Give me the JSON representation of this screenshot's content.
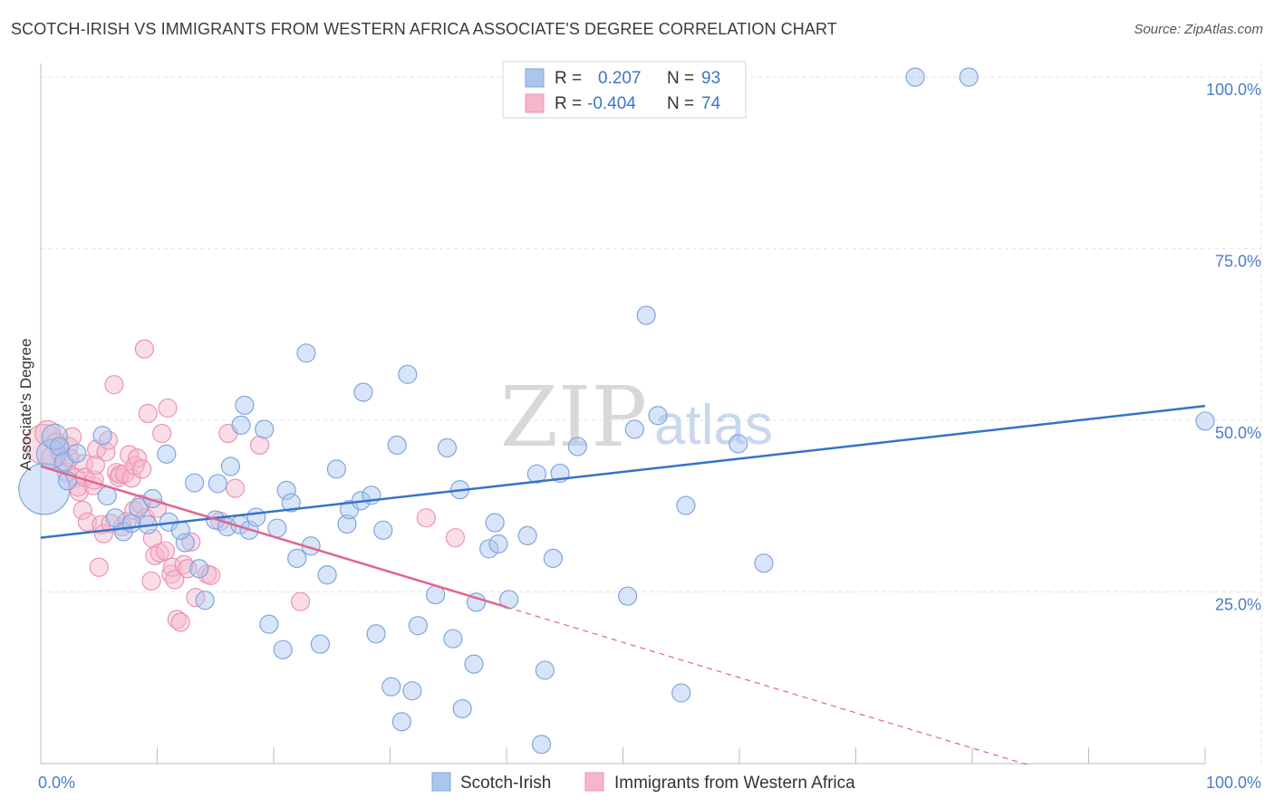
{
  "header": {
    "title": "SCOTCH-IRISH VS IMMIGRANTS FROM WESTERN AFRICA ASSOCIATE'S DEGREE CORRELATION CHART",
    "source": "Source: ZipAtlas.com"
  },
  "watermark": {
    "zip": "ZIP",
    "atlas": "atlas"
  },
  "colors": {
    "blue_fill": "#a9c6ef",
    "blue_stroke": "#7fa6de",
    "blue_line": "#3672cc",
    "pink_fill": "#f5b6ca",
    "pink_stroke": "#ec93b0",
    "pink_line": "#e0658f",
    "grid": "#e3e3e3",
    "tick_text": "#4a7cc9"
  },
  "legend": {
    "rows": [
      {
        "r_label": "R =",
        "r_value": "0.207",
        "n_label": "N =",
        "n_value": "93"
      },
      {
        "r_label": "R =",
        "r_value": "-0.404",
        "n_label": "N =",
        "n_value": "74"
      }
    ]
  },
  "chart_data": {
    "type": "scatter",
    "title": "SCOTCH-IRISH VS IMMIGRANTS FROM WESTERN AFRICA ASSOCIATE'S DEGREE CORRELATION CHART",
    "xlabel": "",
    "ylabel": "Associate's Degree",
    "xlim": [
      0,
      100
    ],
    "ylim": [
      0,
      102
    ],
    "x_tick_labels": [
      "0.0%",
      "100.0%"
    ],
    "y_ticks": [
      25,
      50,
      75,
      100
    ],
    "y_tick_labels": [
      "25.0%",
      "50.0%",
      "75.0%",
      "100.0%"
    ],
    "grid": true,
    "legend_position": "top-center",
    "series": [
      {
        "name": "Scotch-Irish",
        "color": "#a9c6ef",
        "r": 0.207,
        "n": 93,
        "trend": {
          "x": [
            0,
            100
          ],
          "y": [
            32.9,
            52.1
          ]
        },
        "points": [
          [
            0.3,
            40.0,
            28
          ],
          [
            0.9,
            45.1,
            16
          ],
          [
            1.2,
            47.6,
            14
          ],
          [
            1.6,
            46.2,
            10
          ],
          [
            2.0,
            44.0,
            10
          ],
          [
            2.3,
            41.2,
            10
          ],
          [
            3.1,
            45.2,
            10
          ],
          [
            5.3,
            47.8,
            10
          ],
          [
            5.7,
            39.0,
            10
          ],
          [
            6.4,
            35.8,
            10
          ],
          [
            7.1,
            33.8,
            10
          ],
          [
            7.8,
            35.0,
            10
          ],
          [
            8.4,
            37.3,
            10
          ],
          [
            9.6,
            38.6,
            10
          ],
          [
            9.2,
            34.8,
            10
          ],
          [
            11.0,
            35.2,
            10
          ],
          [
            10.8,
            45.1,
            10
          ],
          [
            12.4,
            32.2,
            10
          ],
          [
            12.0,
            34.0,
            10
          ],
          [
            13.2,
            40.9,
            10
          ],
          [
            13.6,
            28.4,
            10
          ],
          [
            14.1,
            23.8,
            10
          ],
          [
            15.0,
            35.5,
            10
          ],
          [
            15.2,
            40.8,
            10
          ],
          [
            16.0,
            34.5,
            10
          ],
          [
            16.3,
            43.3,
            10
          ],
          [
            17.1,
            34.8,
            10
          ],
          [
            17.2,
            49.3,
            10
          ],
          [
            17.5,
            52.2,
            10
          ],
          [
            17.9,
            34.0,
            10
          ],
          [
            18.5,
            35.9,
            10
          ],
          [
            19.2,
            48.7,
            10
          ],
          [
            19.6,
            20.3,
            10
          ],
          [
            20.3,
            34.3,
            10
          ],
          [
            20.8,
            16.6,
            10
          ],
          [
            21.1,
            39.8,
            10
          ],
          [
            21.5,
            38.0,
            10
          ],
          [
            22.0,
            29.9,
            10
          ],
          [
            22.8,
            59.8,
            10
          ],
          [
            23.2,
            31.7,
            10
          ],
          [
            24.0,
            17.4,
            10
          ],
          [
            24.6,
            27.5,
            10
          ],
          [
            25.4,
            42.9,
            10
          ],
          [
            26.3,
            34.9,
            10
          ],
          [
            26.5,
            37.0,
            10
          ],
          [
            27.5,
            38.3,
            10
          ],
          [
            27.7,
            54.1,
            10
          ],
          [
            28.4,
            39.1,
            10
          ],
          [
            28.8,
            18.9,
            10
          ],
          [
            29.4,
            34.0,
            10
          ],
          [
            30.1,
            11.2,
            10
          ],
          [
            30.6,
            46.4,
            10
          ],
          [
            31.0,
            6.1,
            10
          ],
          [
            31.5,
            56.7,
            10
          ],
          [
            31.9,
            10.6,
            10
          ],
          [
            32.4,
            20.1,
            10
          ],
          [
            33.9,
            24.6,
            10
          ],
          [
            34.9,
            46.0,
            10
          ],
          [
            35.4,
            18.2,
            10
          ],
          [
            36.0,
            39.9,
            10
          ],
          [
            36.2,
            8.0,
            10
          ],
          [
            37.2,
            14.5,
            10
          ],
          [
            37.4,
            23.5,
            10
          ],
          [
            38.5,
            31.3,
            10
          ],
          [
            39.3,
            32.0,
            10
          ],
          [
            39.0,
            35.1,
            10
          ],
          [
            40.2,
            23.9,
            10
          ],
          [
            41.8,
            33.2,
            10
          ],
          [
            42.6,
            42.2,
            10
          ],
          [
            43.0,
            2.8,
            10
          ],
          [
            43.3,
            13.6,
            10
          ],
          [
            44.0,
            29.9,
            10
          ],
          [
            44.6,
            42.3,
            10
          ],
          [
            46.1,
            46.2,
            10
          ],
          [
            50.4,
            24.4,
            10
          ],
          [
            51.0,
            48.7,
            10
          ],
          [
            52.0,
            65.3,
            10
          ],
          [
            53.0,
            50.7,
            10
          ],
          [
            55.0,
            10.3,
            10
          ],
          [
            55.4,
            37.6,
            10
          ],
          [
            59.9,
            46.6,
            10
          ],
          [
            62.1,
            29.2,
            10
          ],
          [
            75.1,
            100.0,
            10
          ],
          [
            79.7,
            100.0,
            10
          ],
          [
            100.0,
            49.9,
            10
          ]
        ]
      },
      {
        "name": "Immigrants from Western Africa",
        "color": "#f5b6ca",
        "r": -0.404,
        "n": 74,
        "trend": {
          "x": [
            0,
            40.0
          ],
          "y": [
            43.3,
            22.8
          ]
        },
        "trend_dashed": {
          "x": [
            40.0,
            85.0
          ],
          "y": [
            22.8,
            -0.3
          ]
        },
        "points": [
          [
            0.3,
            46.5,
            22
          ],
          [
            0.6,
            48.1,
            14
          ],
          [
            1.0,
            44.6,
            12
          ],
          [
            1.3,
            46.8,
            10
          ],
          [
            1.7,
            45.1,
            10
          ],
          [
            1.9,
            43.8,
            10
          ],
          [
            2.2,
            42.4,
            10
          ],
          [
            2.4,
            46.2,
            10
          ],
          [
            2.5,
            44.5,
            10
          ],
          [
            2.7,
            47.6,
            10
          ],
          [
            3.0,
            41.7,
            10
          ],
          [
            3.2,
            40.3,
            10
          ],
          [
            3.3,
            39.6,
            10
          ],
          [
            3.6,
            36.9,
            10
          ],
          [
            3.7,
            43.7,
            10
          ],
          [
            3.8,
            41.7,
            10
          ],
          [
            4.0,
            35.2,
            10
          ],
          [
            4.5,
            40.5,
            10
          ],
          [
            4.6,
            41.3,
            10
          ],
          [
            4.7,
            43.5,
            10
          ],
          [
            4.8,
            45.8,
            10
          ],
          [
            5.0,
            28.6,
            10
          ],
          [
            5.2,
            34.8,
            10
          ],
          [
            5.4,
            33.5,
            10
          ],
          [
            5.6,
            45.4,
            10
          ],
          [
            5.8,
            47.1,
            10
          ],
          [
            6.0,
            35.0,
            10
          ],
          [
            6.3,
            55.2,
            10
          ],
          [
            6.5,
            42.4,
            10
          ],
          [
            6.7,
            41.7,
            10
          ],
          [
            6.8,
            42.1,
            10
          ],
          [
            7.0,
            34.5,
            10
          ],
          [
            7.2,
            42.2,
            10
          ],
          [
            7.4,
            35.3,
            10
          ],
          [
            7.6,
            45.0,
            10
          ],
          [
            7.8,
            41.6,
            10
          ],
          [
            8.0,
            36.9,
            10
          ],
          [
            8.1,
            43.4,
            10
          ],
          [
            8.3,
            44.5,
            10
          ],
          [
            8.6,
            37.8,
            10
          ],
          [
            8.7,
            42.9,
            10
          ],
          [
            8.9,
            60.4,
            10
          ],
          [
            9.0,
            35.8,
            10
          ],
          [
            9.2,
            51.0,
            10
          ],
          [
            9.5,
            26.6,
            10
          ],
          [
            9.6,
            32.8,
            10
          ],
          [
            9.8,
            30.3,
            10
          ],
          [
            10.0,
            37.2,
            10
          ],
          [
            10.2,
            30.7,
            10
          ],
          [
            10.4,
            48.1,
            10
          ],
          [
            10.7,
            31.0,
            10
          ],
          [
            10.9,
            51.8,
            10
          ],
          [
            11.2,
            27.6,
            10
          ],
          [
            11.3,
            28.6,
            10
          ],
          [
            11.5,
            26.8,
            10
          ],
          [
            11.7,
            21.0,
            10
          ],
          [
            12.0,
            20.6,
            10
          ],
          [
            12.3,
            29.0,
            10
          ],
          [
            12.6,
            28.4,
            10
          ],
          [
            12.9,
            32.3,
            10
          ],
          [
            13.3,
            24.2,
            10
          ],
          [
            14.3,
            27.6,
            10
          ],
          [
            14.6,
            27.4,
            10
          ],
          [
            15.4,
            35.3,
            10
          ],
          [
            16.1,
            48.1,
            10
          ],
          [
            16.7,
            40.1,
            10
          ],
          [
            18.8,
            46.4,
            10
          ],
          [
            22.3,
            23.6,
            10
          ],
          [
            33.1,
            35.8,
            10
          ],
          [
            35.6,
            32.9,
            10
          ]
        ]
      }
    ]
  }
}
